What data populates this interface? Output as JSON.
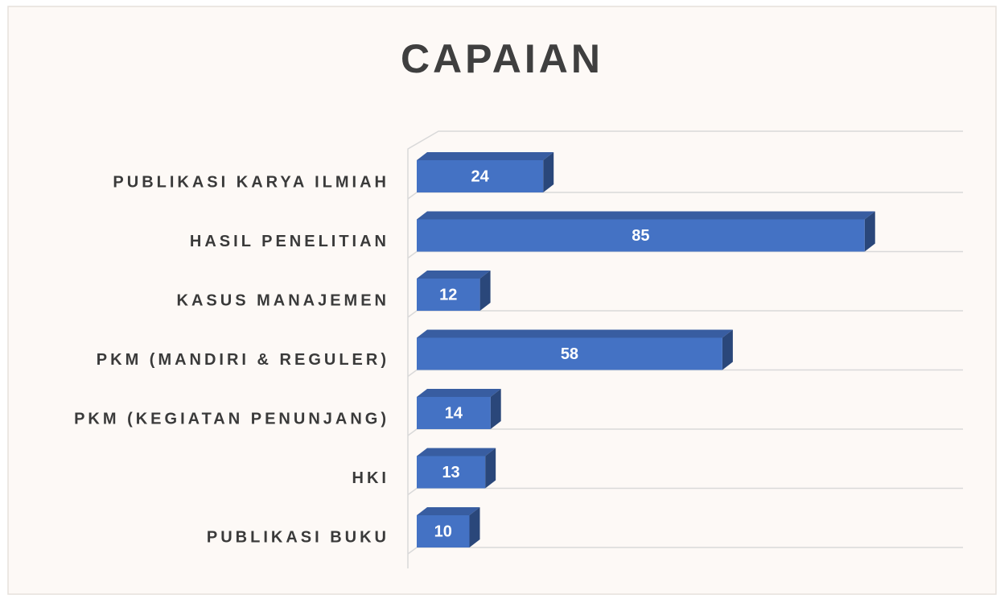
{
  "chart_data": {
    "type": "bar",
    "orientation": "horizontal",
    "title": "CAPAIAN",
    "categories": [
      "PUBLIKASI KARYA ILMIAH",
      "HASIL PENELITIAN",
      "KASUS MANAJEMEN",
      "PKM (MANDIRI & REGULER)",
      "PKM (KEGIATAN PENUNJANG)",
      "HKI",
      "PUBLIKASI BUKU"
    ],
    "values": [
      24,
      85,
      12,
      58,
      14,
      13,
      10
    ],
    "color": "#4472c4",
    "xlim": [
      0,
      100
    ],
    "data_labels": true
  }
}
